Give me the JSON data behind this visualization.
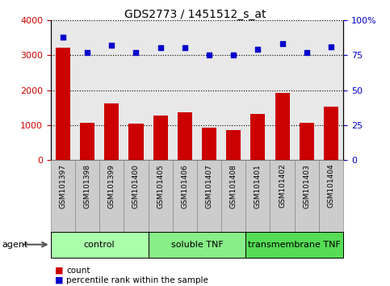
{
  "title": "GDS2773 / 1451512_s_at",
  "samples": [
    "GSM101397",
    "GSM101398",
    "GSM101399",
    "GSM101400",
    "GSM101405",
    "GSM101406",
    "GSM101407",
    "GSM101408",
    "GSM101401",
    "GSM101402",
    "GSM101403",
    "GSM101404"
  ],
  "counts": [
    3200,
    1060,
    1630,
    1040,
    1280,
    1370,
    920,
    860,
    1330,
    1930,
    1070,
    1530
  ],
  "percentiles": [
    88,
    77,
    82,
    77,
    80,
    80,
    75,
    75,
    79,
    83,
    77,
    81
  ],
  "bar_color": "#cc0000",
  "dot_color": "#0000cc",
  "ylim_left": [
    0,
    4000
  ],
  "ylim_right": [
    0,
    100
  ],
  "yticks_left": [
    0,
    1000,
    2000,
    3000,
    4000
  ],
  "yticks_right": [
    0,
    25,
    50,
    75,
    100
  ],
  "groups": [
    {
      "label": "control",
      "start": 0,
      "end": 4,
      "color": "#aaffaa"
    },
    {
      "label": "soluble TNF",
      "start": 4,
      "end": 8,
      "color": "#88ee88"
    },
    {
      "label": "transmembrane TNF",
      "start": 8,
      "end": 12,
      "color": "#55dd55"
    }
  ],
  "agent_label": "agent",
  "legend_count_label": "count",
  "legend_percentile_label": "percentile rank within the sample",
  "bar_color_name": "red",
  "dot_color_name": "blue"
}
